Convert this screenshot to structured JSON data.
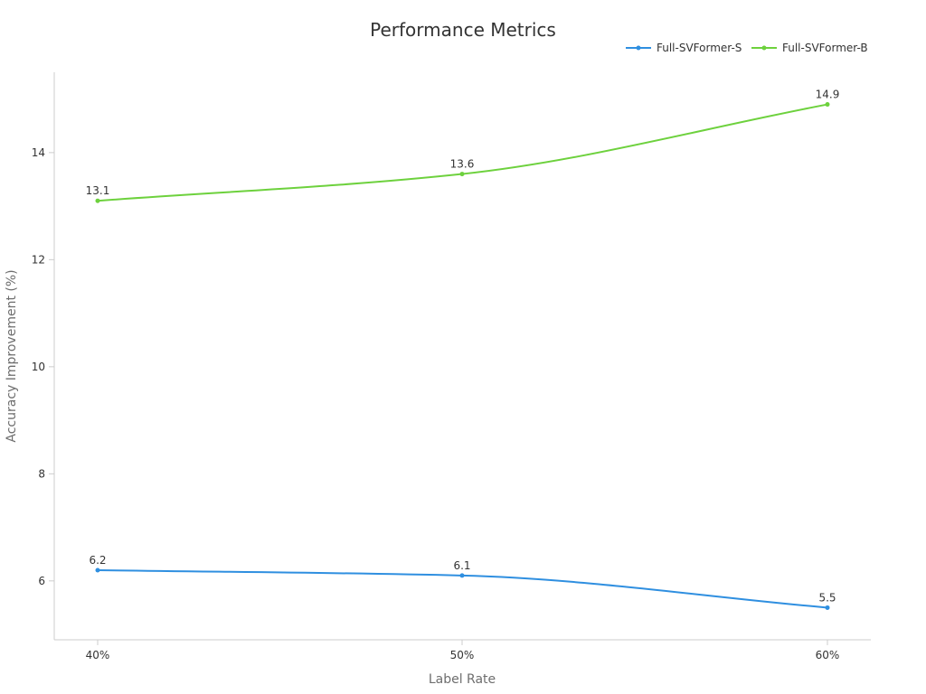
{
  "chart_data": {
    "type": "line",
    "title": "Performance Metrics",
    "xlabel": "Label Rate",
    "ylabel": "Accuracy Improvement (%)",
    "categories": [
      "40%",
      "50%",
      "60%"
    ],
    "ylim": [
      4.9,
      15.5
    ],
    "yticks": [
      6,
      8,
      10,
      12,
      14
    ],
    "grid": false,
    "legend_position": "top-right",
    "smooth": true,
    "series": [
      {
        "name": "Full-SVFormer-S",
        "color": "#2f8fe0",
        "values": [
          6.2,
          6.1,
          5.5
        ],
        "labels": [
          "6.2",
          "6.1",
          "5.5"
        ]
      },
      {
        "name": "Full-SVFormer-B",
        "color": "#6dd13d",
        "values": [
          13.1,
          13.6,
          14.9
        ],
        "labels": [
          "13.1",
          "13.6",
          "14.9"
        ]
      }
    ]
  }
}
